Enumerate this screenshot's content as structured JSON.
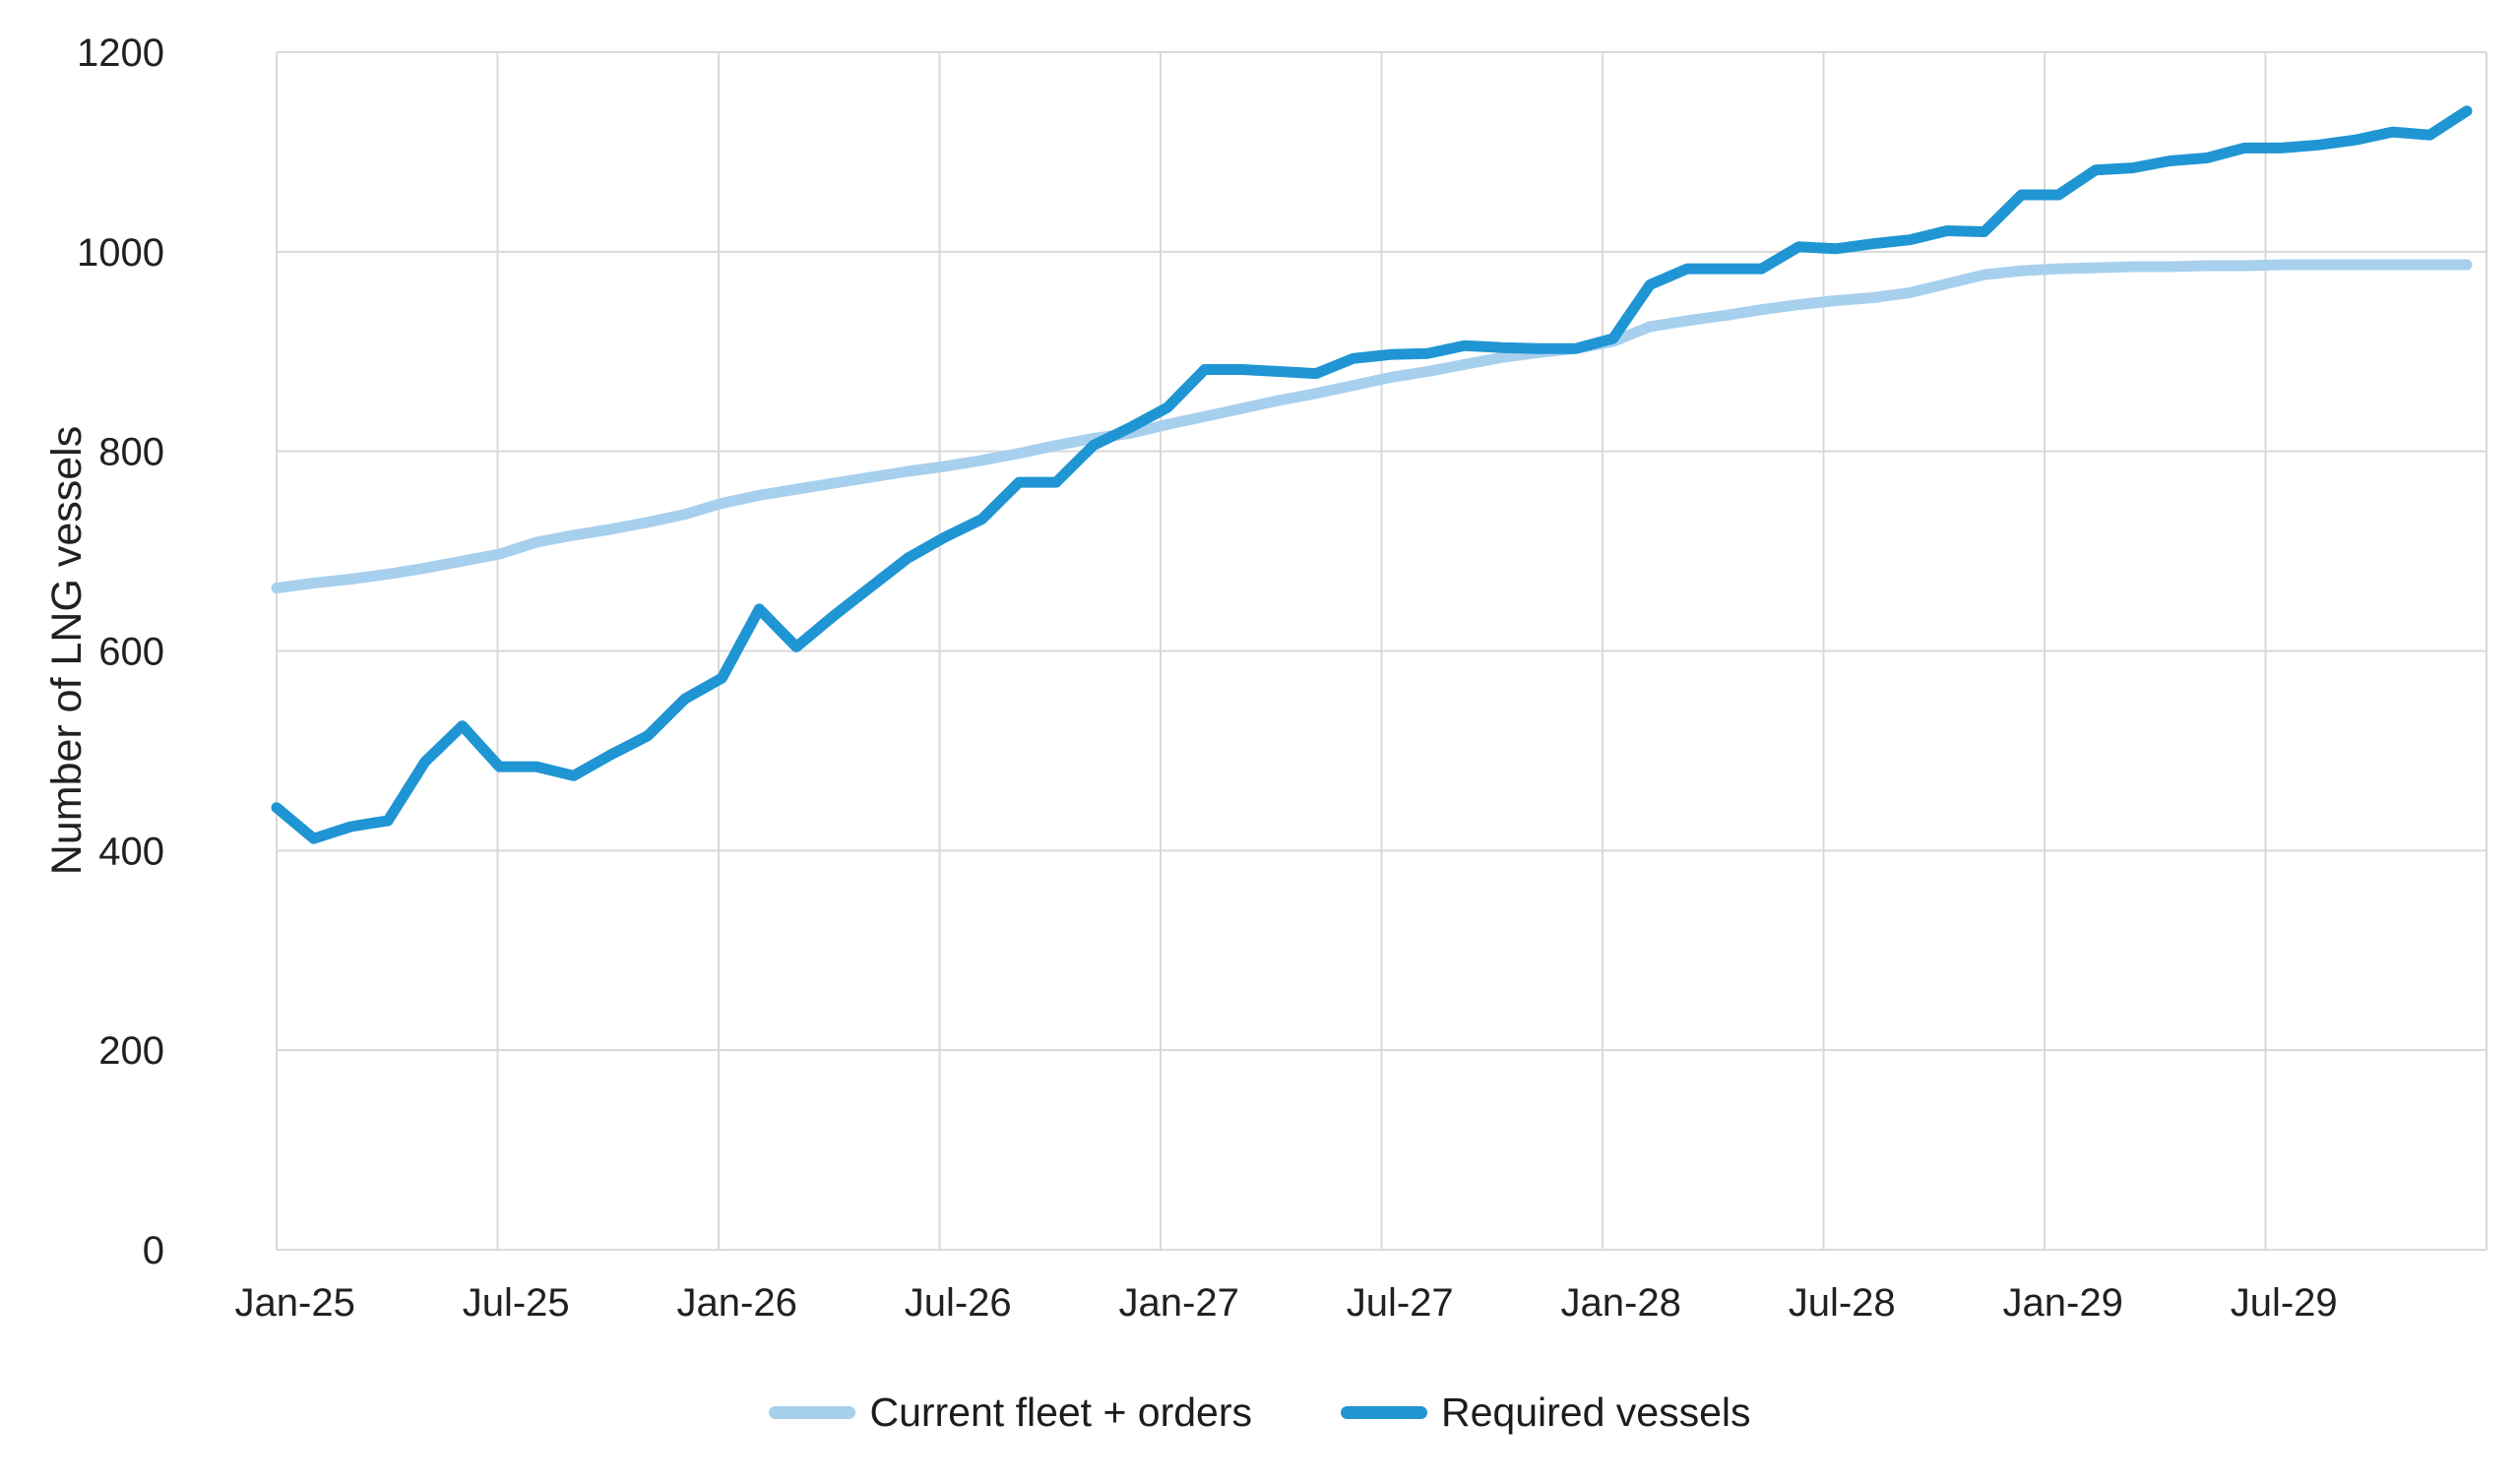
{
  "chart_data": {
    "type": "line",
    "title": "",
    "xlabel": "",
    "ylabel": "Number of LNG vessels",
    "ylim": [
      0,
      1200
    ],
    "ytick_step": 200,
    "ytick_labels": [
      "0",
      "200",
      "400",
      "600",
      "800",
      "1000",
      "1200"
    ],
    "x_axis_tick_labels": [
      "Jan-25",
      "Jul-25",
      "Jan-26",
      "Jul-26",
      "Jan-27",
      "Jul-27",
      "Jan-28",
      "Jul-28",
      "Jan-29",
      "Jul-29"
    ],
    "grid": true,
    "gridline_color": "#D9D9D9",
    "text_color": "#212121",
    "legend_position": "bottom",
    "x": [
      "Jan-25",
      "Feb-25",
      "Mar-25",
      "Apr-25",
      "May-25",
      "Jun-25",
      "Jul-25",
      "Aug-25",
      "Sep-25",
      "Oct-25",
      "Nov-25",
      "Dec-25",
      "Jan-26",
      "Feb-26",
      "Mar-26",
      "Apr-26",
      "May-26",
      "Jun-26",
      "Jul-26",
      "Aug-26",
      "Sep-26",
      "Oct-26",
      "Nov-26",
      "Dec-26",
      "Jan-27",
      "Feb-27",
      "Mar-27",
      "Apr-27",
      "May-27",
      "Jun-27",
      "Jul-27",
      "Aug-27",
      "Sep-27",
      "Oct-27",
      "Nov-27",
      "Dec-27",
      "Jan-28",
      "Feb-28",
      "Mar-28",
      "Apr-28",
      "May-28",
      "Jun-28",
      "Jul-28",
      "Aug-28",
      "Sep-28",
      "Oct-28",
      "Nov-28",
      "Dec-28",
      "Jan-29",
      "Feb-29",
      "Mar-29",
      "Apr-29",
      "May-29",
      "Jun-29",
      "Jul-29",
      "Aug-29",
      "Sep-29",
      "Oct-29",
      "Nov-29",
      "Dec-29"
    ],
    "series": [
      {
        "name": "Current fleet + orders",
        "color": "#A7CFEE",
        "values": [
          663,
          668,
          672,
          677,
          683,
          690,
          697,
          709,
          716,
          722,
          729,
          737,
          748,
          756,
          762,
          768,
          774,
          780,
          785,
          791,
          798,
          806,
          813,
          818,
          827,
          835,
          843,
          851,
          858,
          866,
          874,
          880,
          887,
          894,
          899,
          903,
          910,
          925,
          931,
          936,
          942,
          947,
          951,
          954,
          959,
          968,
          977,
          981,
          983,
          984,
          985,
          985,
          986,
          986,
          987,
          987,
          987,
          987,
          987,
          987
        ]
      },
      {
        "name": "Required vessels",
        "color": "#2095D3",
        "values": [
          443,
          412,
          424,
          430,
          489,
          525,
          484,
          484,
          475,
          496,
          515,
          552,
          573,
          642,
          604,
          635,
          664,
          693,
          714,
          732,
          769,
          769,
          806,
          824,
          844,
          882,
          882,
          880,
          878,
          893,
          897,
          898,
          906,
          904,
          903,
          903,
          913,
          967,
          983,
          983,
          983,
          1005,
          1003,
          1008,
          1012,
          1021,
          1020,
          1057,
          1057,
          1082,
          1084,
          1091,
          1094,
          1104,
          1104,
          1107,
          1112,
          1120,
          1117,
          1141
        ]
      }
    ]
  }
}
